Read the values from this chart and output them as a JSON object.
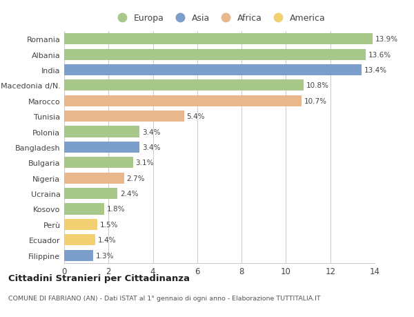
{
  "countries": [
    "Romania",
    "Albania",
    "India",
    "Macedonia d/N.",
    "Marocco",
    "Tunisia",
    "Polonia",
    "Bangladesh",
    "Bulgaria",
    "Nigeria",
    "Ucraina",
    "Kosovo",
    "Perù",
    "Ecuador",
    "Filippine"
  ],
  "values": [
    13.9,
    13.6,
    13.4,
    10.8,
    10.7,
    5.4,
    3.4,
    3.4,
    3.1,
    2.7,
    2.4,
    1.8,
    1.5,
    1.4,
    1.3
  ],
  "continents": [
    "Europa",
    "Europa",
    "Asia",
    "Europa",
    "Africa",
    "Africa",
    "Europa",
    "Asia",
    "Europa",
    "Africa",
    "Europa",
    "Europa",
    "America",
    "America",
    "Asia"
  ],
  "colors": {
    "Europa": "#a8c88a",
    "Asia": "#7b9ecb",
    "Africa": "#e8b88c",
    "America": "#f0d070"
  },
  "legend_order": [
    "Europa",
    "Asia",
    "Africa",
    "America"
  ],
  "xlim": [
    0,
    14
  ],
  "xticks": [
    0,
    2,
    4,
    6,
    8,
    10,
    12,
    14
  ],
  "title": "Cittadini Stranieri per Cittadinanza",
  "subtitle": "COMUNE DI FABRIANO (AN) - Dati ISTAT al 1° gennaio di ogni anno - Elaborazione TUTTITALIA.IT",
  "background_color": "#ffffff",
  "grid_color": "#cccccc"
}
